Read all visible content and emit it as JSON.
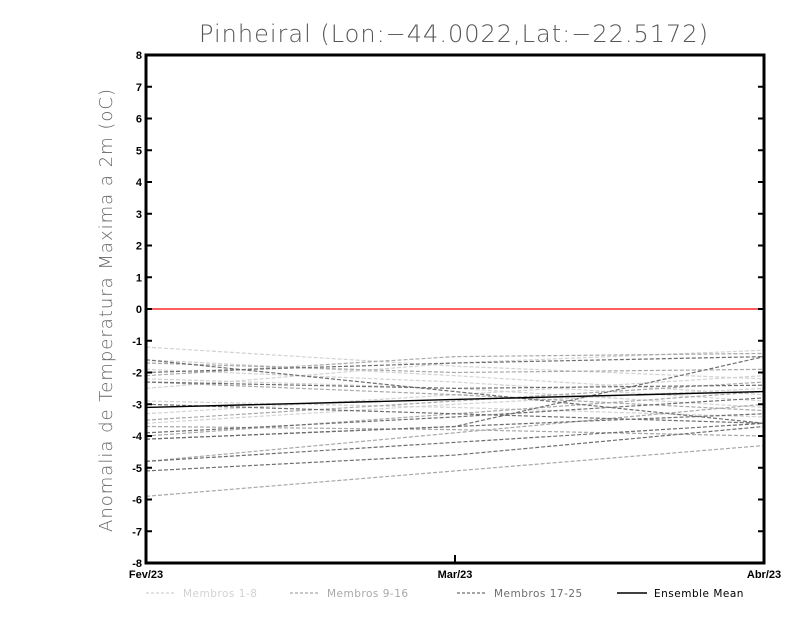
{
  "chart_data": {
    "type": "line",
    "title": "Pinheiral (Lon:−44.0022,Lat:−22.5172)",
    "ylabel": "Anomalia de Temperatura Maxima a 2m (oC)",
    "xlabel": "",
    "categories": [
      "Fev/23",
      "Mar/23",
      "Abr/23"
    ],
    "y_ticks": [
      "8",
      "7",
      "6",
      "5",
      "4",
      "3",
      "2",
      "1",
      "0",
      "-1",
      "-2",
      "-3",
      "-4",
      "-5",
      "-6",
      "-7",
      "-8"
    ],
    "ylim": [
      -8,
      8
    ],
    "grid": false,
    "reference_line": {
      "y": 0,
      "color": "#ff2a2a"
    },
    "colors": {
      "group_1_8": "#d2d2d2",
      "group_9_16": "#a8a8a8",
      "group_17_25": "#6e6e6e",
      "ensemble_mean": "#000000"
    },
    "legend": [
      {
        "label": "Membros 1-8",
        "group": "group_1_8",
        "style": "dashed"
      },
      {
        "label": "Membros 9-16",
        "group": "group_9_16",
        "style": "dashed"
      },
      {
        "label": "Membros 17-25",
        "group": "group_17_25",
        "style": "dashed"
      },
      {
        "label": "Ensemble Mean",
        "group": "ensemble_mean",
        "style": "solid"
      }
    ],
    "legend_position": "bottom",
    "series": [
      {
        "group": "group_1_8",
        "values": [
          -1.2,
          -1.8,
          -2.2
        ]
      },
      {
        "group": "group_1_8",
        "values": [
          -1.6,
          -2.1,
          -2.7
        ]
      },
      {
        "group": "group_1_8",
        "values": [
          -2.2,
          -2.5,
          -3.1
        ]
      },
      {
        "group": "group_1_8",
        "values": [
          -2.5,
          -1.7,
          -1.3
        ]
      },
      {
        "group": "group_1_8",
        "values": [
          -2.9,
          -3.1,
          -3.4
        ]
      },
      {
        "group": "group_1_8",
        "values": [
          -3.3,
          -2.7,
          -2.1
        ]
      },
      {
        "group": "group_1_8",
        "values": [
          -3.6,
          -3.0,
          -2.5
        ]
      },
      {
        "group": "group_1_8",
        "values": [
          -1.9,
          -2.3,
          -2.9
        ]
      },
      {
        "group": "group_9_16",
        "values": [
          -5.9,
          -5.1,
          -4.3
        ]
      },
      {
        "group": "group_9_16",
        "values": [
          -4.8,
          -3.9,
          -3.0
        ]
      },
      {
        "group": "group_9_16",
        "values": [
          -2.1,
          -1.5,
          -1.4
        ]
      },
      {
        "group": "group_9_16",
        "values": [
          -2.3,
          -2.7,
          -3.2
        ]
      },
      {
        "group": "group_9_16",
        "values": [
          -3.7,
          -3.8,
          -4.0
        ]
      },
      {
        "group": "group_9_16",
        "values": [
          -4.0,
          -3.3,
          -2.6
        ]
      },
      {
        "group": "group_9_16",
        "values": [
          -3.5,
          -2.9,
          -2.3
        ]
      },
      {
        "group": "group_9_16",
        "values": [
          -1.7,
          -2.0,
          -1.9
        ]
      },
      {
        "group": "group_17_25",
        "values": [
          -5.1,
          -4.6,
          -3.7
        ]
      },
      {
        "group": "group_17_25",
        "values": [
          -4.8,
          -4.2,
          -3.6
        ]
      },
      {
        "group": "group_17_25",
        "values": [
          -3.9,
          -3.4,
          -2.8
        ]
      },
      {
        "group": "group_17_25",
        "values": [
          -1.6,
          -2.6,
          -3.6
        ]
      },
      {
        "group": "group_17_25",
        "values": [
          -4.1,
          -3.7,
          -3.3
        ]
      },
      {
        "group": "group_17_25",
        "values": [
          -2.0,
          -1.7,
          -1.5
        ]
      },
      {
        "group": "group_17_25",
        "values": [
          -2.3,
          -2.5,
          -2.4
        ]
      },
      {
        "group": "group_17_25",
        "values": [
          -3.0,
          -3.3,
          -3.6
        ]
      },
      {
        "group": "group_17_25",
        "values": [
          -4.1,
          -3.7,
          -1.5
        ]
      },
      {
        "group": "ensemble_mean",
        "values": [
          -3.1,
          -2.85,
          -2.6
        ]
      }
    ]
  }
}
